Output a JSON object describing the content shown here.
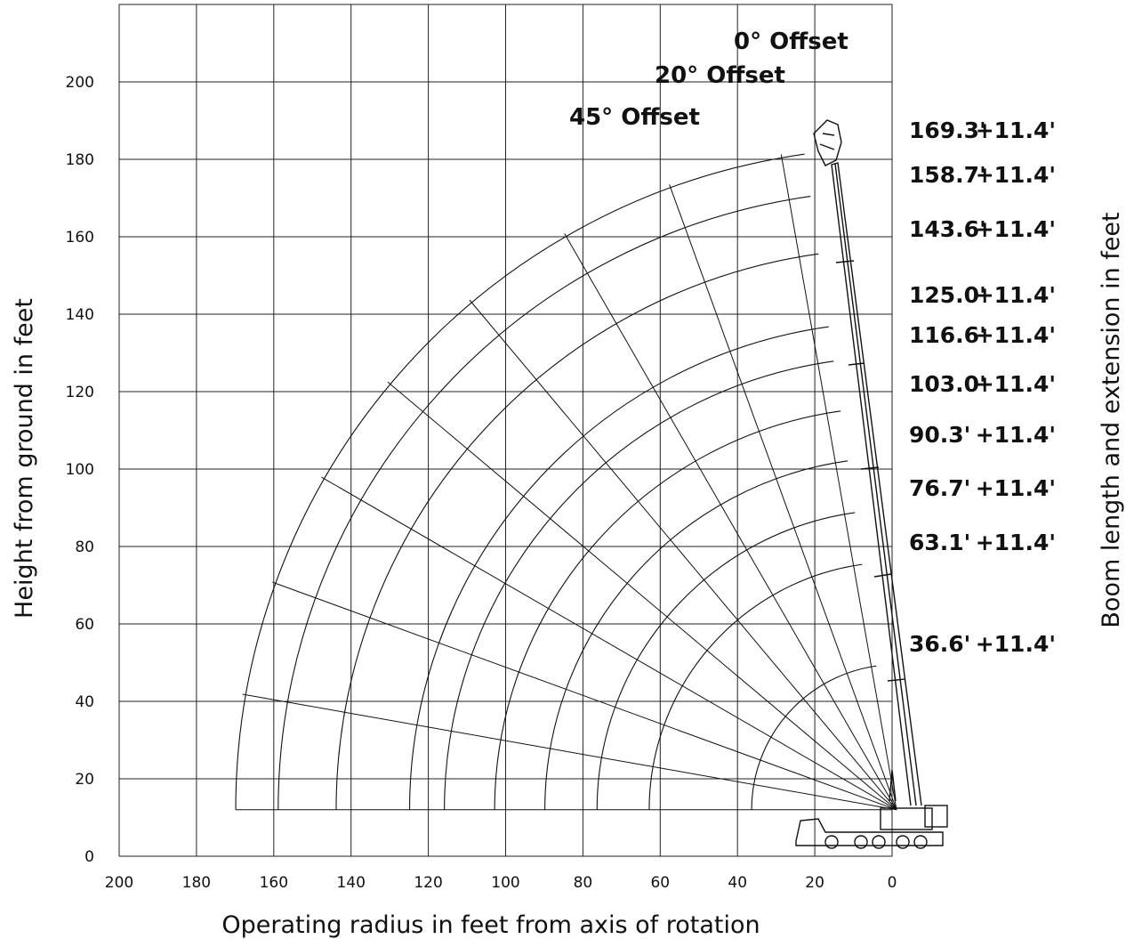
{
  "chart_data": {
    "type": "line",
    "title": "",
    "xlabel": "Operating radius in feet from axis of rotation",
    "ylabel": "Height from ground in feet",
    "y2label": "Boom length and extension in feet",
    "xlim": [
      200,
      0
    ],
    "ylim": [
      0,
      220
    ],
    "x_ticks": [
      "200",
      "180",
      "160",
      "140",
      "120",
      "100",
      "80",
      "60",
      "40",
      "20",
      "0"
    ],
    "y_ticks": [
      "0",
      "20",
      "40",
      "60",
      "80",
      "100",
      "120",
      "140",
      "160",
      "180",
      "200"
    ],
    "grid": true,
    "pivot_height": 12,
    "boom_lengths": [
      36.6,
      63.1,
      76.7,
      90.3,
      103.0,
      116.6,
      125.0,
      143.6,
      158.7,
      169.3
    ],
    "extension_length": 11.4,
    "arc_radii": [
      37.5,
      64,
      77.5,
      91,
      104,
      117,
      126,
      145,
      160,
      171
    ],
    "boom_angles_deg": [
      10,
      20,
      30,
      40,
      50,
      60,
      70,
      80
    ],
    "boom_labels": [
      {
        "length": "169.3'",
        "extension": "+11.4'"
      },
      {
        "length": "158.7'",
        "extension": "+11.4'"
      },
      {
        "length": "143.6'",
        "extension": "+11.4'"
      },
      {
        "length": "125.0'",
        "extension": "+11.4'"
      },
      {
        "length": "116.6'",
        "extension": "+11.4'"
      },
      {
        "length": "103.0'",
        "extension": "+11.4'"
      },
      {
        "length": "90.3'",
        "extension": "+11.4'"
      },
      {
        "length": "76.7'",
        "extension": "+11.4'"
      },
      {
        "length": "63.1'",
        "extension": "+11.4'"
      },
      {
        "length": "36.6'",
        "extension": "+11.4'"
      }
    ],
    "offset_labels": [
      "0° Offset",
      "20° Offset",
      "45° Offset"
    ]
  }
}
